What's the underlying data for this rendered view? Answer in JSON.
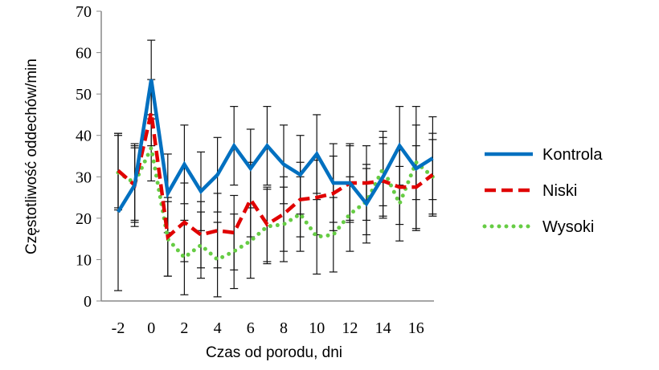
{
  "chart_data": {
    "type": "line",
    "title": "",
    "xlabel": "Czas od porodu, dni",
    "ylabel": "Częstotliwość oddechów/min",
    "xlim": [
      -2,
      17
    ],
    "ylim": [
      0,
      70
    ],
    "x_ticks": [
      -2,
      0,
      2,
      4,
      6,
      8,
      10,
      12,
      14,
      16
    ],
    "y_ticks": [
      0,
      10,
      20,
      30,
      40,
      50,
      60,
      70
    ],
    "legend_position": "right",
    "x": [
      -2,
      -1,
      0,
      1,
      2,
      3,
      4,
      5,
      6,
      7,
      8,
      9,
      10,
      11,
      12,
      13,
      14,
      15,
      16,
      17
    ],
    "series": [
      {
        "name": "Kontrola",
        "color": "#0070C0",
        "style": "solid",
        "values": [
          21.5,
          28,
          53.5,
          26,
          33,
          26.5,
          30.5,
          37.5,
          32,
          37.5,
          33,
          30.5,
          35.5,
          28.5,
          28.5,
          23.5,
          30,
          37.5,
          32,
          34.5
        ],
        "errors": [
          19,
          10,
          9.5,
          9.5,
          9.5,
          9.5,
          9,
          9.5,
          9.5,
          9.5,
          9.5,
          9.5,
          9.5,
          9.5,
          9.5,
          9.5,
          9.5,
          9.5,
          15,
          10
        ]
      },
      {
        "name": "Niski",
        "color": "#E00000",
        "style": "dashed",
        "values": [
          31.5,
          28,
          45.5,
          15.5,
          19,
          16,
          17,
          16.5,
          24.5,
          18.5,
          21,
          24.5,
          25,
          26,
          28.5,
          28.5,
          29,
          27.5,
          27.5,
          30.5
        ],
        "errors": [
          9,
          9,
          8,
          9.5,
          9.5,
          8,
          9,
          9,
          9,
          9,
          9,
          9,
          9,
          9,
          9,
          9,
          9,
          9,
          10,
          10
        ]
      },
      {
        "name": "Wysoki",
        "color": "#66CC44",
        "style": "dotted",
        "values": [
          31,
          28.5,
          37,
          15,
          10.5,
          13.5,
          10,
          12,
          14.5,
          18,
          18.5,
          21,
          15.5,
          16,
          21,
          24,
          32,
          23.5,
          33.5,
          30
        ],
        "errors": [
          9,
          9,
          8,
          9,
          9,
          8,
          9,
          9,
          9,
          9,
          9,
          9,
          9,
          9,
          9,
          8,
          9,
          9,
          9,
          9
        ]
      }
    ]
  }
}
